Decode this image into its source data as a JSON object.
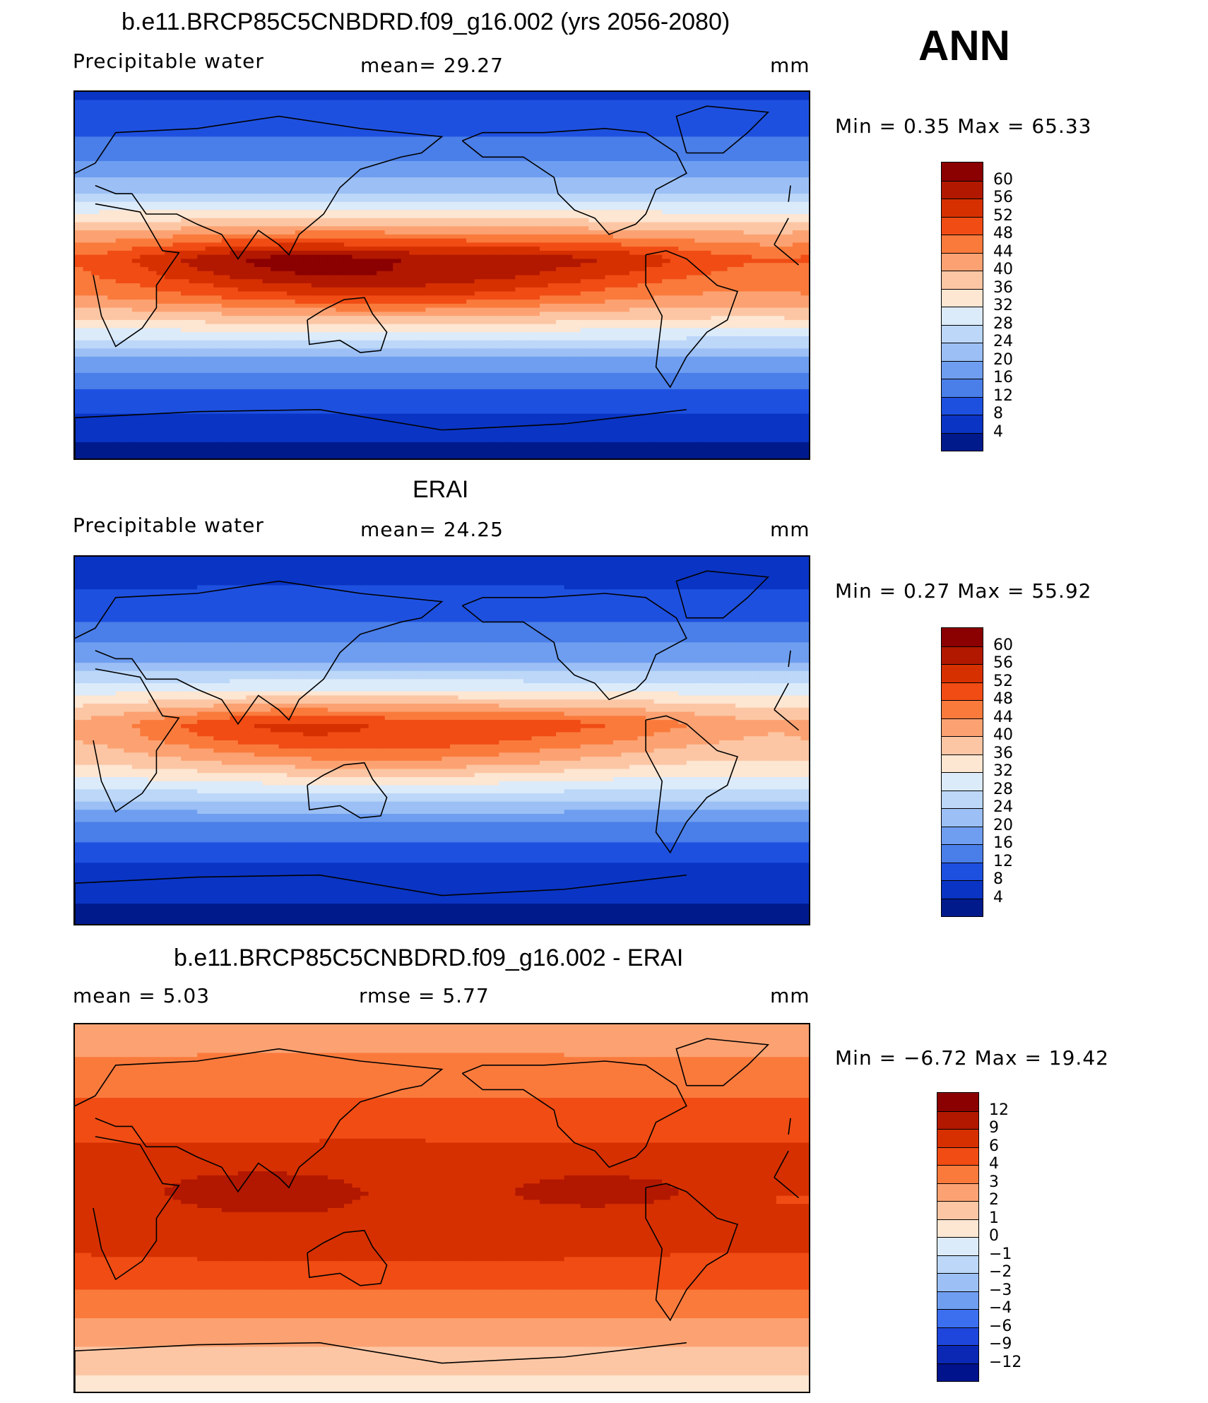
{
  "season": "ANN",
  "panels": [
    {
      "title": "b.e11.BRCP85C5CNBDRD.f09_g16.002 (yrs 2056-2080)",
      "left_label": "Precipitable  water",
      "center_label": "mean=   29.27",
      "right_label": "mm",
      "minmax": "Min  =     0.35  Max  =    65.33",
      "palette": "abs"
    },
    {
      "title": "ERAI",
      "left_label": "Precipitable  water",
      "center_label": "mean=   24.25",
      "right_label": "mm",
      "minmax": "Min  =     0.27  Max  =    55.92",
      "palette": "abs"
    },
    {
      "title": "b.e11.BRCP85C5CNBDRD.f09_g16.002 - ERAI",
      "left_label": "mean  =      5.03",
      "center_label": "rmse  =      5.77",
      "right_label": "mm",
      "minmax": "Min  =   −6.72  Max  =    19.42",
      "palette": "diff"
    }
  ],
  "colorbars": {
    "abs": {
      "labels": [
        "60",
        "56",
        "52",
        "48",
        "44",
        "40",
        "36",
        "32",
        "28",
        "24",
        "20",
        "16",
        "12",
        "8",
        "4"
      ],
      "colors": [
        "#8b0000",
        "#b21800",
        "#d63000",
        "#f04c14",
        "#fa7a3c",
        "#fca272",
        "#fcc6a4",
        "#fde6d2",
        "#dcebfa",
        "#bcd7f8",
        "#9cc0f5",
        "#6f9ef0",
        "#4a7ee8",
        "#1e50e0",
        "#0a34c4",
        "#001a8c"
      ]
    },
    "diff": {
      "labels": [
        "12",
        "9",
        "6",
        "4",
        "3",
        "2",
        "1",
        "0",
        "−1",
        "−2",
        "−3",
        "−4",
        "−6",
        "−9",
        "−12"
      ],
      "colors": [
        "#8b0000",
        "#b21800",
        "#d63000",
        "#f04c14",
        "#fa7a3c",
        "#fca272",
        "#fcc6a4",
        "#fde6d2",
        "#dcebfa",
        "#bcd7f8",
        "#9cc0f5",
        "#6f9ef0",
        "#3c6ef0",
        "#1e46dc",
        "#0a28b4",
        "#00128c"
      ]
    }
  },
  "chart_data": [
    {
      "type": "heatmap",
      "title": "b.e11.BRCP85C5CNBDRD.f09_g16.002 (yrs 2056-2080)",
      "variable": "Precipitable water",
      "units": "mm",
      "mean": 29.27,
      "min": 0.35,
      "max": 65.33,
      "contour_levels": [
        4,
        8,
        12,
        16,
        20,
        24,
        28,
        32,
        36,
        40,
        44,
        48,
        52,
        56,
        60
      ],
      "map": "global lat-lon, Pacific-centred",
      "zonal_profile": [
        {
          "lat": 90,
          "value": 7
        },
        {
          "lat": 60,
          "value": 14
        },
        {
          "lat": 40,
          "value": 24
        },
        {
          "lat": 25,
          "value": 38
        },
        {
          "lat": 8,
          "value": 56
        },
        {
          "lat": 0,
          "value": 54
        },
        {
          "lat": -10,
          "value": 48
        },
        {
          "lat": -25,
          "value": 34
        },
        {
          "lat": -40,
          "value": 20
        },
        {
          "lat": -60,
          "value": 10
        },
        {
          "lat": -90,
          "value": 2
        }
      ]
    },
    {
      "type": "heatmap",
      "title": "ERAI",
      "variable": "Precipitable water",
      "units": "mm",
      "mean": 24.25,
      "min": 0.27,
      "max": 55.92,
      "contour_levels": [
        4,
        8,
        12,
        16,
        20,
        24,
        28,
        32,
        36,
        40,
        44,
        48,
        52,
        56,
        60
      ],
      "map": "global lat-lon, Pacific-centred",
      "zonal_profile": [
        {
          "lat": 90,
          "value": 5
        },
        {
          "lat": 60,
          "value": 11
        },
        {
          "lat": 40,
          "value": 19
        },
        {
          "lat": 25,
          "value": 31
        },
        {
          "lat": 8,
          "value": 48
        },
        {
          "lat": 0,
          "value": 46
        },
        {
          "lat": -10,
          "value": 40
        },
        {
          "lat": -25,
          "value": 28
        },
        {
          "lat": -40,
          "value": 16
        },
        {
          "lat": -60,
          "value": 8
        },
        {
          "lat": -90,
          "value": 2
        }
      ]
    },
    {
      "type": "heatmap",
      "title": "b.e11.BRCP85C5CNBDRD.f09_g16.002 - ERAI",
      "variable": "Precipitable water difference",
      "units": "mm",
      "mean": 5.03,
      "rmse": 5.77,
      "min": -6.72,
      "max": 19.42,
      "contour_levels": [
        -12,
        -9,
        -6,
        -4,
        -3,
        -2,
        -1,
        0,
        1,
        2,
        3,
        4,
        6,
        9,
        12
      ],
      "map": "global lat-lon, Pacific-centred",
      "zonal_profile": [
        {
          "lat": 90,
          "value": 2.5
        },
        {
          "lat": 60,
          "value": 3.5
        },
        {
          "lat": 40,
          "value": 5
        },
        {
          "lat": 25,
          "value": 7
        },
        {
          "lat": 8,
          "value": 9
        },
        {
          "lat": 0,
          "value": 8
        },
        {
          "lat": -10,
          "value": 7.5
        },
        {
          "lat": -25,
          "value": 6
        },
        {
          "lat": -40,
          "value": 4
        },
        {
          "lat": -60,
          "value": 2.5
        },
        {
          "lat": -90,
          "value": 0.5
        }
      ]
    }
  ]
}
